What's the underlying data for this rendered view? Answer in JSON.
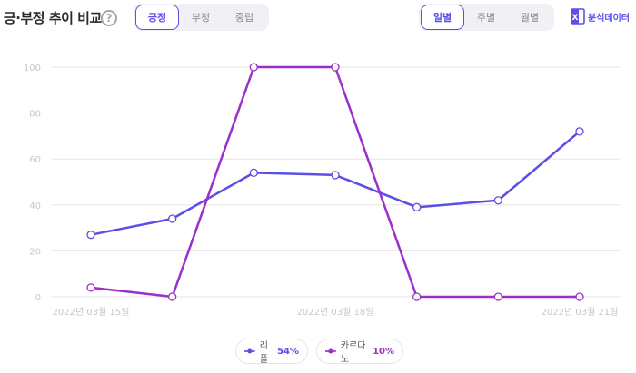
{
  "header": {
    "title": "긍·부정 추이 비교",
    "help_glyph": "?",
    "sentiment_tabs": [
      "긍정",
      "부정",
      "중립"
    ],
    "period_tabs": [
      "일별",
      "주별",
      "월별"
    ],
    "export_label": "분석데이터",
    "export_glyph": "X"
  },
  "colors": {
    "accent": "#5b4fe6",
    "series_1": "#5b4fe6",
    "series_2": "#9b2fc9",
    "grid": "#e6e6e6",
    "tick": "#c7c7c7"
  },
  "legend": [
    {
      "name": "리플",
      "pct": "54%"
    },
    {
      "name": "카르다노",
      "pct": "10%"
    }
  ],
  "chart_data": {
    "type": "line",
    "x": [
      "2022-03-15",
      "2022-03-16",
      "2022-03-17",
      "2022-03-18",
      "2022-03-19",
      "2022-03-20",
      "2022-03-21"
    ],
    "x_tick_labels": [
      "2022년 03월 15일",
      "2022년 03월 18일",
      "2022년 03월 21일"
    ],
    "y_ticks": [
      0,
      20,
      40,
      60,
      80,
      100
    ],
    "ylim": [
      0,
      100
    ],
    "grid": true,
    "legend_position": "bottom",
    "series": [
      {
        "name": "리플",
        "values": [
          27,
          34,
          54,
          53,
          39,
          42,
          72
        ]
      },
      {
        "name": "카르다노",
        "values": [
          4,
          0,
          100,
          100,
          0,
          0,
          0
        ]
      }
    ]
  }
}
